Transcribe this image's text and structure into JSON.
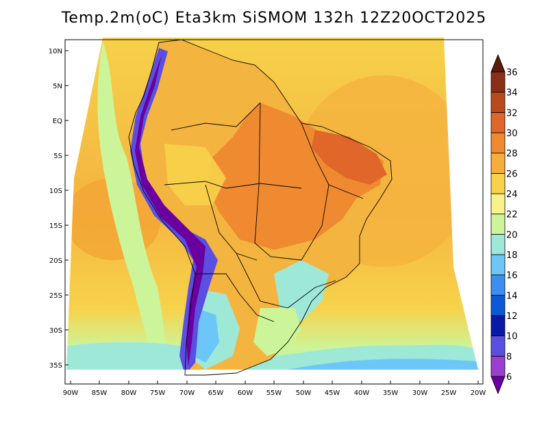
{
  "map": {
    "title": "Temp.2m(oC) Eta3km SiSMOM 132h 12Z20OCT2025",
    "latitude_labels": [
      "10N",
      "5N",
      "EQ",
      "5S",
      "10S",
      "15S",
      "20S",
      "25S",
      "30S",
      "35S"
    ],
    "longitude_labels": [
      "90W",
      "85W",
      "80W",
      "75W",
      "70W",
      "65W",
      "60W",
      "55W",
      "50W",
      "45W",
      "40W",
      "35W",
      "30W",
      "25W",
      "20W"
    ]
  },
  "colorbar": {
    "levels": [
      "6",
      "8",
      "10",
      "12",
      "14",
      "16",
      "18",
      "20",
      "22",
      "24",
      "26",
      "28",
      "30",
      "32",
      "34",
      "36"
    ],
    "colors": [
      "#6a00a0",
      "#9c3fd0",
      "#5a4fe0",
      "#0a1aa8",
      "#0a5ad8",
      "#3a8ff0",
      "#6cc6f7",
      "#9ee8d8",
      "#ccf59a",
      "#f7f28a",
      "#f7d24a",
      "#f7ad3a",
      "#f08a30",
      "#e0662a",
      "#b84a1e",
      "#8a3016",
      "#5a1a0c"
    ]
  },
  "colors": {
    "ocean_warm": "#f4b440",
    "ocean_mid": "#f7d24a",
    "coast_cool": "#ccf59a",
    "land_hot": "#f08a30",
    "andes": "#6a00a0"
  }
}
